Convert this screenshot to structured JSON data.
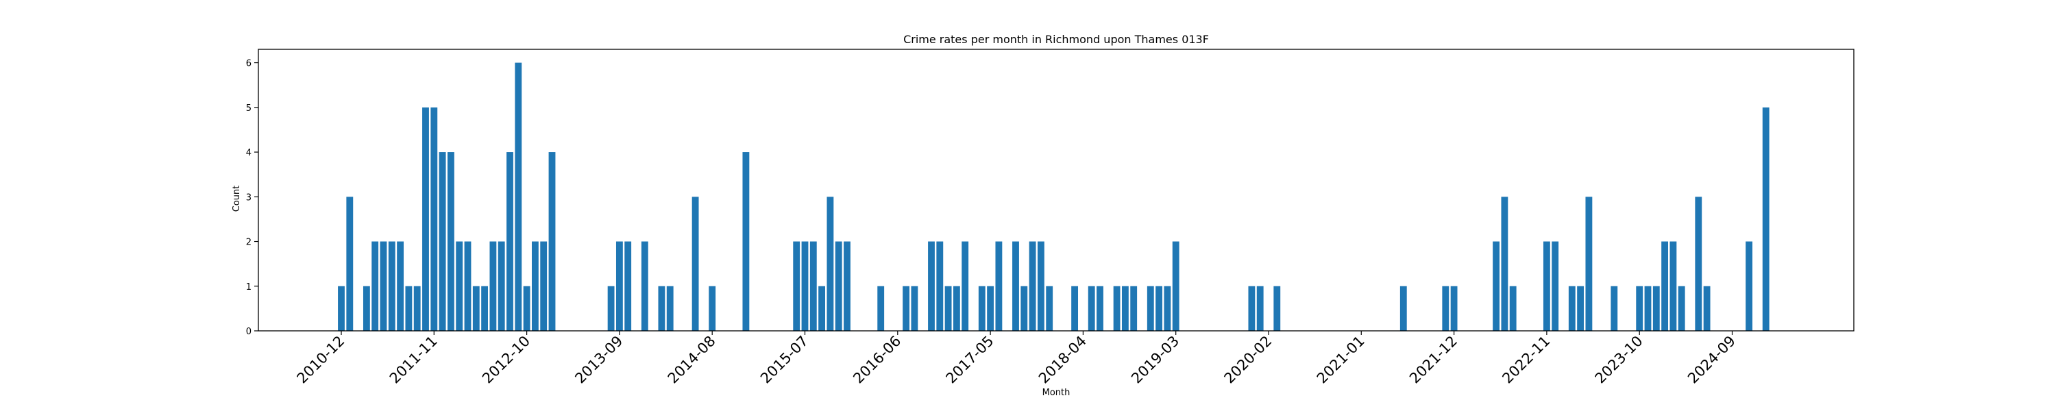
{
  "chart_data": {
    "type": "bar",
    "title": "Crime rates per month in Richmond upon Thames 013F",
    "xlabel": "Month",
    "ylabel": "Count",
    "ylim": [
      0,
      6.3
    ],
    "yticks": [
      0,
      1,
      2,
      3,
      4,
      5,
      6
    ],
    "xticks": [
      "2010-12",
      "2011-11",
      "2012-10",
      "2013-09",
      "2014-08",
      "2015-07",
      "2016-06",
      "2017-05",
      "2018-04",
      "2019-03",
      "2020-02",
      "2021-01",
      "2021-12",
      "2022-11",
      "2023-10",
      "2024-09"
    ],
    "grid": false,
    "legend": "none",
    "bar_color": "#1f77b4",
    "x": [
      "2010-12",
      "2011-01",
      "2011-03",
      "2011-04",
      "2011-05",
      "2011-06",
      "2011-07",
      "2011-08",
      "2011-09",
      "2011-10",
      "2011-11",
      "2011-12",
      "2012-01",
      "2012-02",
      "2012-03",
      "2012-04",
      "2012-05",
      "2012-06",
      "2012-07",
      "2012-08",
      "2012-09",
      "2012-10",
      "2012-11",
      "2012-12",
      "2013-01",
      "2013-08",
      "2013-09",
      "2013-10",
      "2013-12",
      "2014-02",
      "2014-03",
      "2014-06",
      "2014-08",
      "2014-12",
      "2015-06",
      "2015-07",
      "2015-08",
      "2015-09",
      "2015-10",
      "2015-11",
      "2015-12",
      "2016-04",
      "2016-07",
      "2016-08",
      "2016-10",
      "2016-11",
      "2016-12",
      "2017-01",
      "2017-02",
      "2017-04",
      "2017-05",
      "2017-06",
      "2017-08",
      "2017-09",
      "2017-10",
      "2017-11",
      "2017-12",
      "2018-03",
      "2018-05",
      "2018-06",
      "2018-08",
      "2018-09",
      "2018-10",
      "2018-12",
      "2019-01",
      "2019-02",
      "2019-03",
      "2019-12",
      "2020-01",
      "2020-03",
      "2021-06",
      "2021-11",
      "2021-12",
      "2022-05",
      "2022-06",
      "2022-07",
      "2022-11",
      "2022-12",
      "2023-02",
      "2023-03",
      "2023-04",
      "2023-07",
      "2023-10",
      "2023-11",
      "2023-12",
      "2024-01",
      "2024-02",
      "2024-03",
      "2024-05",
      "2024-06",
      "2024-11",
      "2025-01"
    ],
    "values": [
      1,
      3,
      1,
      2,
      2,
      2,
      2,
      1,
      1,
      5,
      5,
      4,
      4,
      2,
      2,
      1,
      1,
      2,
      2,
      4,
      6,
      1,
      2,
      2,
      4,
      1,
      2,
      2,
      2,
      1,
      1,
      3,
      1,
      4,
      2,
      2,
      2,
      1,
      3,
      2,
      2,
      1,
      1,
      1,
      2,
      2,
      1,
      1,
      2,
      1,
      1,
      2,
      2,
      1,
      2,
      2,
      1,
      1,
      1,
      1,
      1,
      1,
      1,
      1,
      1,
      1,
      2,
      1,
      1,
      1,
      1,
      1,
      1,
      2,
      3,
      1,
      2,
      2,
      1,
      1,
      3,
      1,
      1,
      1,
      1,
      2,
      2,
      1,
      3,
      1,
      2,
      5
    ]
  }
}
